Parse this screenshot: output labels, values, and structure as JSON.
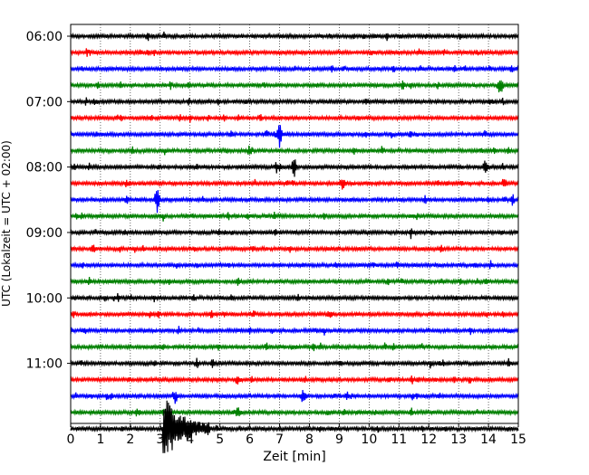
{
  "chart_data": {
    "type": "line",
    "title": "",
    "xlabel": "Zeit  [min]",
    "ylabel": "UTC (Lokalzeit = UTC + 02:00)",
    "xlim": [
      0,
      15
    ],
    "x_ticks": [
      0,
      1,
      2,
      3,
      4,
      5,
      6,
      7,
      8,
      9,
      10,
      11,
      12,
      13,
      14,
      15
    ],
    "y_tick_labels": [
      "06:00",
      "07:00",
      "08:00",
      "09:00",
      "10:00",
      "11:00"
    ],
    "grid": "vertical dotted lines at each minute",
    "trace_interval_minutes": 15,
    "trace_start": "06:00",
    "trace_colors": [
      "#000000",
      "#ff0000",
      "#0000ff",
      "#008000"
    ],
    "events": [
      {
        "trace_index": 3,
        "minute": 14.4,
        "amplitude": 1.2
      },
      {
        "trace_index": 6,
        "minute": 7.0,
        "amplitude": 1.6
      },
      {
        "trace_index": 8,
        "minute": 7.5,
        "amplitude": 1.3
      },
      {
        "trace_index": 8,
        "minute": 13.9,
        "amplitude": 0.7
      },
      {
        "trace_index": 10,
        "minute": 2.9,
        "amplitude": 1.6
      },
      {
        "trace_index": 9,
        "minute": 9.1,
        "amplitude": 0.6
      },
      {
        "trace_index": 21,
        "minute": 5.6,
        "amplitude": 0.7
      },
      {
        "trace_index": 22,
        "minute": 7.8,
        "amplitude": 0.9
      },
      {
        "trace_index": 22,
        "minute": 3.5,
        "amplitude": 0.8
      },
      {
        "trace_index": 23,
        "minute": 5.6,
        "amplitude": 0.5
      },
      {
        "trace_index": 24,
        "minute": 3.1,
        "amplitude": 3.5
      }
    ]
  }
}
